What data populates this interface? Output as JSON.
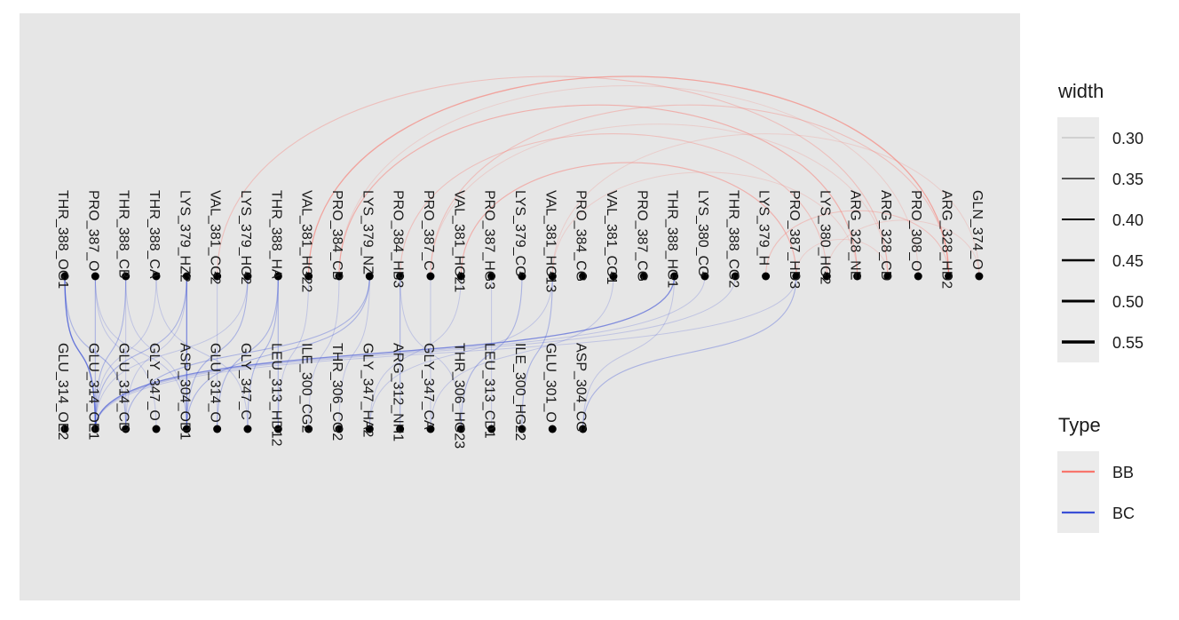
{
  "top_nodes": [
    "THR_388_OG1",
    "PRO_387_O",
    "THR_388_CB",
    "THR_388_CA",
    "LYS_379_HZ2",
    "VAL_381_CG2",
    "LYS_379_HG2",
    "THR_388_HA",
    "VAL_381_HG22",
    "PRO_384_CB",
    "LYS_379_NZ",
    "PRO_384_HB3",
    "PRO_387_C",
    "VAL_381_HG21",
    "PRO_387_HG3",
    "LYS_379_CG",
    "VAL_381_HG13",
    "PRO_384_CG",
    "VAL_381_CG1",
    "PRO_387_CG",
    "THR_388_HG1",
    "LYS_380_CG",
    "THR_388_CG2",
    "LYS_379_H",
    "PRO_387_HD3",
    "LYS_380_HG2",
    "ARG_328_NE",
    "ARG_328_CD",
    "PRO_308_O",
    "ARG_328_HD2",
    "GLN_374_O"
  ],
  "bottom_nodes": [
    "GLU_314_OE2",
    "GLU_314_OE1",
    "GLU_314_CD",
    "GLY_347_O",
    "ASP_304_OD1",
    "GLU_314_O",
    "GLY_347_C",
    "LEU_313_HD12",
    "ILE_300_CG2",
    "THR_306_CG2",
    "GLY_347_HA2",
    "ARG_312_NH1",
    "GLY_347_CA",
    "THR_306_HG23",
    "LEU_313_CD1",
    "ILE_300_HG22",
    "GLU_301_O",
    "ASP_304_CG"
  ],
  "bb_edges": [
    [
      "VAL_381_CG2",
      "ARG_328_CD",
      0.31
    ],
    [
      "VAL_381_HG22",
      "ARG_328_HD2",
      0.33
    ],
    [
      "PRO_384_CB",
      "PRO_308_O",
      0.3
    ],
    [
      "PRO_384_CB",
      "ARG_328_NE",
      0.32
    ],
    [
      "PRO_384_HB3",
      "LYS_380_HG2",
      0.31
    ],
    [
      "PRO_387_C",
      "ARG_328_HD2",
      0.31
    ],
    [
      "PRO_387_C",
      "ARG_328_CD",
      0.3
    ],
    [
      "VAL_381_HG21",
      "PRO_387_HD3",
      0.32
    ],
    [
      "VAL_381_HG13",
      "GLN_374_O",
      0.3
    ],
    [
      "VAL_381_HG13",
      "ARG_328_NE",
      0.3
    ],
    [
      "LYS_379_H",
      "ARG_328_HD2",
      0.31
    ],
    [
      "PRO_387_HD3",
      "ARG_328_CD",
      0.3
    ],
    [
      "LYS_380_HG2",
      "GLN_374_O",
      0.3
    ]
  ],
  "bc_edges": [
    [
      "THR_388_OG1",
      "GLU_314_OE1",
      0.34
    ],
    [
      "THR_388_OG1",
      "GLU_314_CD",
      0.31
    ],
    [
      "PRO_387_O",
      "GLU_314_OE1",
      0.31
    ],
    [
      "PRO_387_O",
      "GLY_347_O",
      0.3
    ],
    [
      "PRO_387_O",
      "ASP_304_OD1",
      0.3
    ],
    [
      "THR_388_CB",
      "GLU_314_OE1",
      0.31
    ],
    [
      "THR_388_CB",
      "GLU_314_CD",
      0.3
    ],
    [
      "THR_388_CB",
      "ASP_304_OD1",
      0.3
    ],
    [
      "THR_388_CA",
      "GLU_314_OE1",
      0.3
    ],
    [
      "THR_388_CA",
      "GLY_347_C",
      0.3
    ],
    [
      "LYS_379_HZ2",
      "GLU_314_OE1",
      0.31
    ],
    [
      "LYS_379_HZ2",
      "ASP_304_OD1",
      0.33
    ],
    [
      "LYS_379_HZ2",
      "GLU_314_CD",
      0.3
    ],
    [
      "VAL_381_CG2",
      "GLU_314_O",
      0.3
    ],
    [
      "LYS_379_HG2",
      "GLU_314_OE1",
      0.3
    ],
    [
      "LYS_379_HG2",
      "ASP_304_OD1",
      0.31
    ],
    [
      "THR_388_HA",
      "GLY_347_C",
      0.31
    ],
    [
      "THR_388_HA",
      "LEU_313_HD12",
      0.31
    ],
    [
      "THR_388_HA",
      "GLU_314_O",
      0.31
    ],
    [
      "VAL_381_HG22",
      "LEU_313_HD12",
      0.3
    ],
    [
      "PRO_384_CB",
      "ILE_300_CG2",
      0.3
    ],
    [
      "LYS_379_NZ",
      "GLU_314_CD",
      0.31
    ],
    [
      "LYS_379_NZ",
      "ASP_304_OD1",
      0.31
    ],
    [
      "LYS_379_NZ",
      "THR_306_CG2",
      0.3
    ],
    [
      "PRO_384_HB3",
      "ARG_312_NH1",
      0.31
    ],
    [
      "PRO_384_HB3",
      "THR_306_HG23",
      0.3
    ],
    [
      "PRO_387_C",
      "GLY_347_CA",
      0.3
    ],
    [
      "VAL_381_HG21",
      "GLY_347_HA2",
      0.3
    ],
    [
      "PRO_387_HG3",
      "LEU_313_CD1",
      0.3
    ],
    [
      "LYS_379_CG",
      "THR_306_HG23",
      0.31
    ],
    [
      "VAL_381_HG13",
      "ILE_300_HG22",
      0.31
    ],
    [
      "VAL_381_HG13",
      "GLY_347_HA2",
      0.3
    ],
    [
      "VAL_381_CG1",
      "GLY_347_CA",
      0.3
    ],
    [
      "THR_388_HG1",
      "GLU_314_OE1",
      0.33
    ],
    [
      "THR_388_HG1",
      "ASP_304_CG",
      0.3
    ],
    [
      "LYS_380_CG",
      "GLU_314_OE1",
      0.3
    ],
    [
      "THR_388_CG2",
      "GLU_314_OE1",
      0.3
    ],
    [
      "PRO_387_HD3",
      "GLU_314_OE1",
      0.3
    ],
    [
      "PRO_387_HD3",
      "ASP_304_CG",
      0.31
    ]
  ],
  "legend": {
    "width_title": "width",
    "width_levels": [
      "0.30",
      "0.35",
      "0.40",
      "0.45",
      "0.50",
      "0.55"
    ],
    "width_values": [
      0.3,
      0.35,
      0.4,
      0.45,
      0.5,
      0.55
    ],
    "type_title": "Type",
    "type_levels": [
      "BB",
      "BC"
    ],
    "type_colors": [
      "#f8766d",
      "#3a4fd6"
    ]
  }
}
